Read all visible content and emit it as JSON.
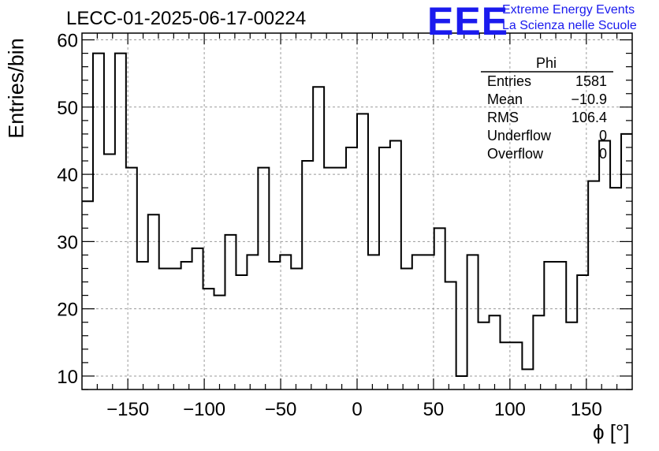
{
  "header": {
    "title": "LECC-01-2025-06-17-00224",
    "logo_text": "EEE",
    "org_line1": "Extreme Energy Events",
    "org_line2": "La Scienza nelle Scuole"
  },
  "stats_box": {
    "name": "Phi",
    "rows": [
      {
        "label": "Entries",
        "value": "1581"
      },
      {
        "label": "Mean",
        "value": "−10.9"
      },
      {
        "label": "RMS",
        "value": "106.4"
      },
      {
        "label": "Underflow",
        "value": "0"
      },
      {
        "label": "Overflow",
        "value": "0"
      }
    ]
  },
  "colors": {
    "logo": "#1a1aee",
    "grid": "#9a9a9a",
    "line": "#000000"
  },
  "chart_data": {
    "type": "histogram",
    "xlabel": "ϕ [°]",
    "ylabel": "Entries/bin",
    "xlim": [
      -180,
      180
    ],
    "ylim": [
      8,
      61
    ],
    "bin_width": 7.2,
    "grid": true,
    "x_ticks": [
      -150,
      -100,
      -50,
      0,
      50,
      100,
      150
    ],
    "y_ticks": [
      10,
      20,
      30,
      40,
      50,
      60
    ],
    "x_tick_labels": [
      "−150",
      "−100",
      "−50",
      "0",
      "50",
      "100",
      "150"
    ],
    "y_tick_labels": [
      "10",
      "20",
      "30",
      "40",
      "50",
      "60"
    ],
    "bin_edges_start": -180,
    "values": [
      36,
      58,
      43,
      58,
      41,
      27,
      34,
      26,
      26,
      27,
      29,
      23,
      22,
      31,
      25,
      28,
      41,
      27,
      28,
      26,
      42,
      53,
      41,
      41,
      44,
      49,
      28,
      44,
      45,
      26,
      28,
      28,
      32,
      24,
      10,
      28,
      18,
      19,
      15,
      15,
      11,
      19,
      27,
      27,
      18,
      25,
      39,
      45,
      38,
      46
    ]
  }
}
